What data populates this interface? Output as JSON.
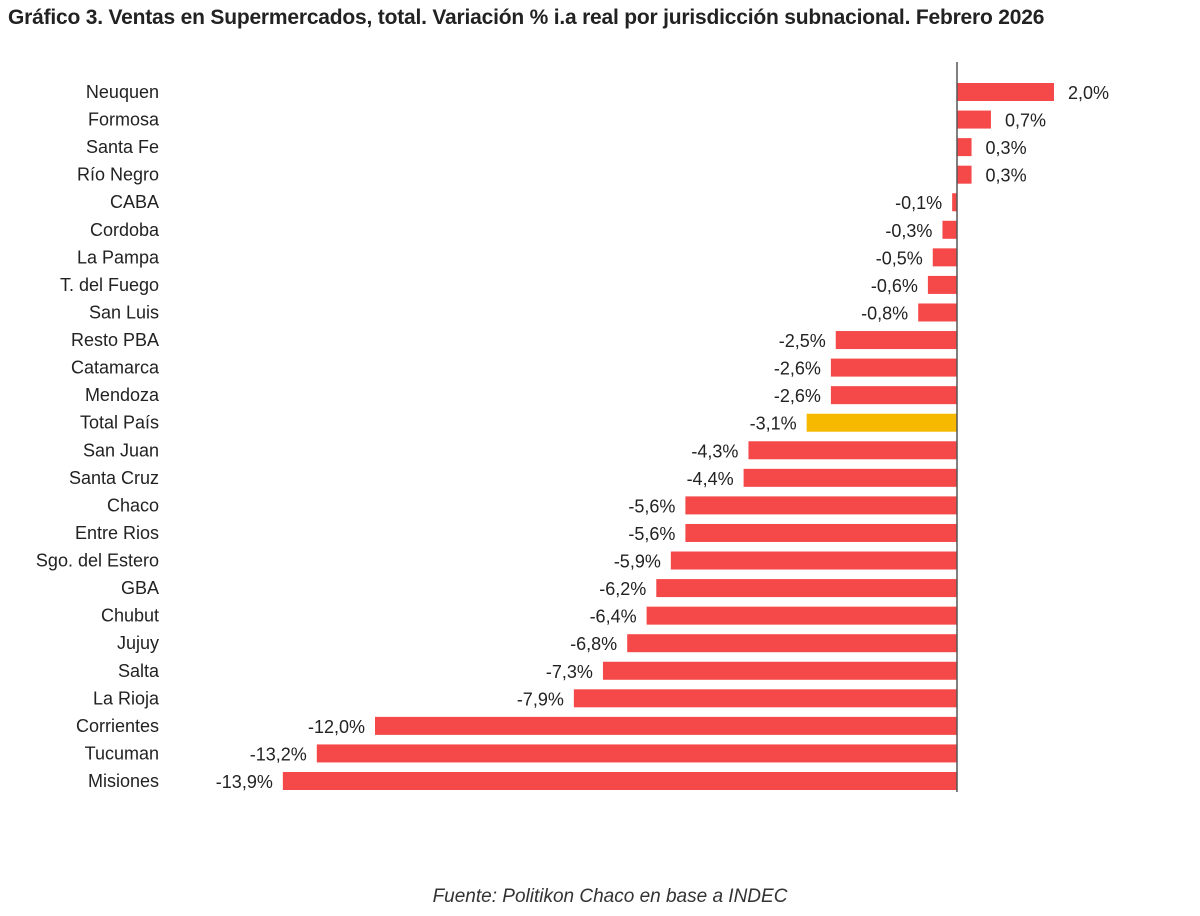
{
  "chart_data": {
    "type": "bar",
    "orientation": "horizontal",
    "title": "Gráfico 3. Ventas en Supermercados, total. Variación % i.a real por jurisdicción subnacional. Febrero 2026",
    "source": "Fuente: Politikon Chaco en base a INDEC",
    "categories": [
      "Neuquen",
      "Formosa",
      "Santa Fe",
      "Río Negro",
      "CABA",
      "Cordoba",
      "La Pampa",
      "T. del Fuego",
      "San Luis",
      "Resto PBA",
      "Catamarca",
      "Mendoza",
      "Total País",
      "San Juan",
      "Santa Cruz",
      "Chaco",
      "Entre Rios",
      "Sgo. del Estero",
      "GBA",
      "Chubut",
      "Jujuy",
      "Salta",
      "La Rioja",
      "Corrientes",
      "Tucuman",
      "Misiones"
    ],
    "values": [
      2.0,
      0.7,
      0.3,
      0.3,
      -0.1,
      -0.3,
      -0.5,
      -0.6,
      -0.8,
      -2.5,
      -2.6,
      -2.6,
      -3.1,
      -4.3,
      -4.4,
      -5.6,
      -5.6,
      -5.9,
      -6.2,
      -6.4,
      -6.8,
      -7.3,
      -7.9,
      -12.0,
      -13.2,
      -13.9
    ],
    "data_labels": [
      "2,0%",
      "0,7%",
      "0,3%",
      "0,3%",
      "-0,1%",
      "-0,3%",
      "-0,5%",
      "-0,6%",
      "-0,8%",
      "-2,5%",
      "-2,6%",
      "-2,6%",
      "-3,1%",
      "-4,3%",
      "-4,4%",
      "-5,6%",
      "-5,6%",
      "-5,9%",
      "-6,2%",
      "-6,4%",
      "-6,8%",
      "-7,3%",
      "-7,9%",
      "-12,0%",
      "-13,2%",
      "-13,9%"
    ],
    "highlight_category": "Total País",
    "colors": {
      "bar": "#f54848",
      "highlight": "#f7b900",
      "axis": "#555555"
    },
    "xlabel": "",
    "ylabel": "",
    "grid": false,
    "legend": "none"
  }
}
